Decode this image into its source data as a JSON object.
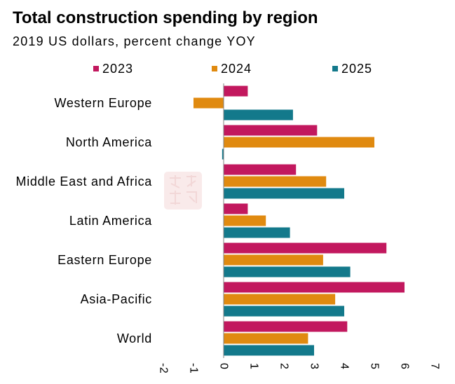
{
  "chart_data": {
    "type": "bar",
    "orientation": "horizontal",
    "title": "Total construction spending by region",
    "subtitle": "2019 US dollars, percent change YOY",
    "categories": [
      "Western Europe",
      "North America",
      "Middle East and Africa",
      "Latin America",
      "Eastern Europe",
      "Asia-Pacific",
      "World"
    ],
    "series": [
      {
        "name": "2023",
        "color": "#C2185E",
        "values": [
          0.8,
          3.1,
          2.4,
          0.8,
          5.4,
          6.0,
          4.1
        ]
      },
      {
        "name": "2024",
        "color": "#E08A10",
        "values": [
          -1.0,
          5.0,
          3.4,
          1.4,
          3.3,
          3.7,
          2.8
        ]
      },
      {
        "name": "2025",
        "color": "#13798B",
        "values": [
          2.3,
          -0.05,
          4.0,
          2.2,
          4.2,
          4.0,
          3.0
        ]
      }
    ],
    "xlim": [
      -2,
      7
    ],
    "xticks": [
      -2,
      -1,
      0,
      1,
      2,
      3,
      4,
      5,
      6,
      7
    ],
    "grid": false,
    "legend": "top"
  },
  "watermark": {
    "brand_text": "紫金天风期货",
    "slogan_text": "立足产业 研究驱动"
  }
}
